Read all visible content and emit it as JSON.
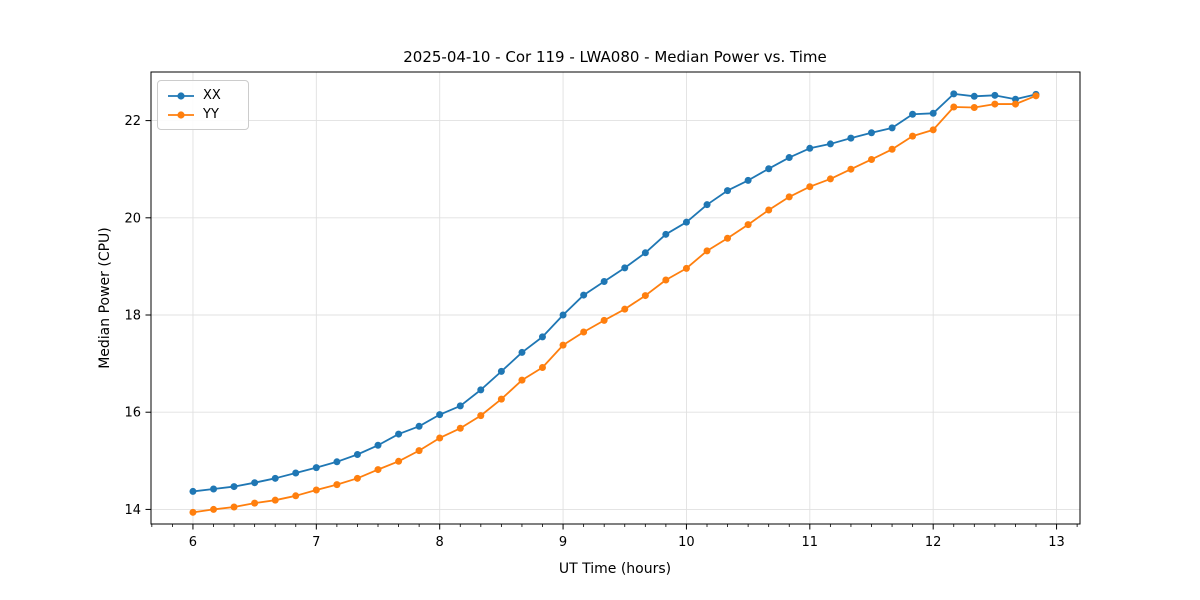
{
  "chart_data": {
    "type": "line",
    "title": "2025-04-10 - Cor 119 - LWA080 - Median Power vs. Time",
    "xlabel": "UT Time (hours)",
    "ylabel": "Median Power (CPU)",
    "x": [
      6.0,
      6.167,
      6.333,
      6.5,
      6.667,
      6.833,
      7.0,
      7.167,
      7.333,
      7.5,
      7.667,
      7.833,
      8.0,
      8.167,
      8.333,
      8.5,
      8.667,
      8.833,
      9.0,
      9.167,
      9.333,
      9.5,
      9.667,
      9.833,
      10.0,
      10.167,
      10.333,
      10.5,
      10.667,
      10.833,
      11.0,
      11.167,
      11.333,
      11.5,
      11.667,
      11.833,
      12.0,
      12.167,
      12.333,
      12.5,
      12.667,
      12.833
    ],
    "series": [
      {
        "name": "XX",
        "color": "#1f77b4",
        "values": [
          14.37,
          14.42,
          14.47,
          14.55,
          14.64,
          14.75,
          14.86,
          14.98,
          15.13,
          15.32,
          15.55,
          15.71,
          15.95,
          16.13,
          16.46,
          16.84,
          17.23,
          17.55,
          18.0,
          18.41,
          18.69,
          18.97,
          19.28,
          19.66,
          19.91,
          20.27,
          20.56,
          20.77,
          21.01,
          21.24,
          21.43,
          21.52,
          21.64,
          21.75,
          21.85,
          22.13,
          22.15,
          22.55,
          22.5,
          22.52,
          22.44,
          22.54
        ]
      },
      {
        "name": "YY",
        "color": "#ff7f0e",
        "values": [
          13.94,
          14.0,
          14.05,
          14.13,
          14.19,
          14.28,
          14.4,
          14.51,
          14.64,
          14.82,
          14.99,
          15.21,
          15.47,
          15.67,
          15.93,
          16.27,
          16.66,
          16.92,
          17.38,
          17.65,
          17.89,
          18.12,
          18.4,
          18.72,
          18.96,
          19.32,
          19.58,
          19.86,
          20.16,
          20.43,
          20.64,
          20.8,
          21.0,
          21.2,
          21.41,
          21.68,
          21.81,
          22.28,
          22.27,
          22.34,
          22.34,
          22.51
        ]
      }
    ],
    "xlim": [
      5.66,
      13.19
    ],
    "ylim": [
      13.7,
      23.0
    ],
    "xticks": [
      6,
      7,
      8,
      9,
      10,
      11,
      12,
      13
    ],
    "yticks": [
      14,
      16,
      18,
      20,
      22
    ],
    "x_minor_interval": 0.16667,
    "grid": true,
    "grid_color": "#e0e0e0",
    "spine_color": "#000000",
    "legend_position": "upper-left",
    "marker": "circle"
  }
}
